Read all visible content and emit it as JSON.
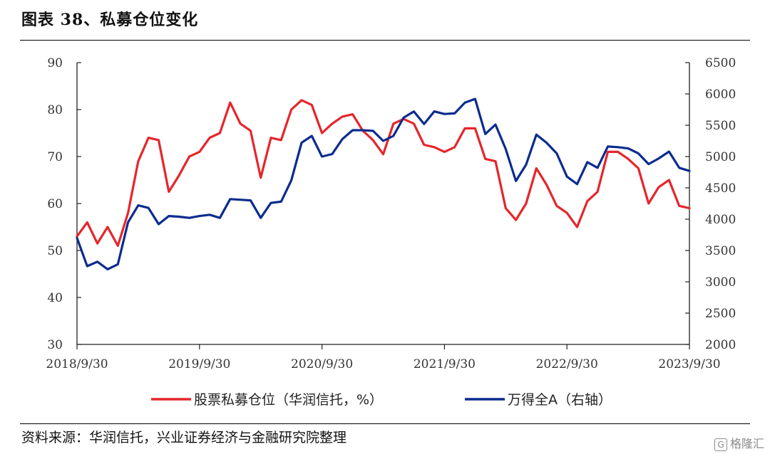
{
  "title": "图表 38、私募仓位变化",
  "source": "资料来源：华润信托，兴业证券经济与金融研究院整理",
  "watermark": "格隆汇",
  "colors": {
    "red": "#e5262b",
    "blue": "#0b2c8e"
  },
  "chart_data": {
    "type": "line",
    "x_ticks": [
      "2018/9/30",
      "2019/9/30",
      "2020/9/30",
      "2021/9/30",
      "2022/9/30",
      "2023/9/30"
    ],
    "ylim_left": [
      30,
      90
    ],
    "yticks_left": [
      30,
      40,
      50,
      60,
      70,
      80,
      90
    ],
    "ylim_right": [
      2000,
      6500
    ],
    "yticks_right": [
      2000,
      2500,
      3000,
      3500,
      4000,
      4500,
      5000,
      5500,
      6000,
      6500
    ],
    "legend_position": "bottom",
    "grid": false,
    "series": [
      {
        "name": "股票私募仓位（华润信托，%）",
        "axis": "left",
        "color": "#e5262b",
        "values": [
          53,
          56,
          51.5,
          55,
          51,
          58,
          69,
          74,
          73.5,
          62.5,
          66,
          70,
          71,
          74,
          75,
          81.5,
          77,
          75.5,
          65.5,
          74,
          73.5,
          80,
          82,
          81,
          75,
          77,
          78.5,
          79,
          75.5,
          73.5,
          70.5,
          77,
          78,
          77,
          72.5,
          72,
          71,
          72,
          76,
          76,
          69.5,
          69,
          59,
          56.5,
          60,
          67.5,
          64,
          59.5,
          58,
          55,
          60.5,
          62.5,
          71,
          71,
          69.5,
          67.5,
          60,
          63.5,
          65,
          59.5,
          59
        ]
      },
      {
        "name": "万得全A（右轴）",
        "axis": "right",
        "color": "#0b2c8e",
        "values": [
          3700,
          3250,
          3320,
          3200,
          3280,
          3950,
          4220,
          4180,
          3920,
          4050,
          4040,
          4020,
          4050,
          4070,
          4020,
          4320,
          4310,
          4300,
          4020,
          4260,
          4280,
          4620,
          5220,
          5330,
          5000,
          5040,
          5280,
          5420,
          5420,
          5410,
          5250,
          5330,
          5620,
          5720,
          5520,
          5720,
          5680,
          5690,
          5860,
          5920,
          5360,
          5510,
          5120,
          4610,
          4870,
          5350,
          5220,
          5050,
          4680,
          4560,
          4910,
          4820,
          5160,
          5150,
          5130,
          5050,
          4880,
          4970,
          5080,
          4820,
          4770
        ]
      }
    ]
  }
}
